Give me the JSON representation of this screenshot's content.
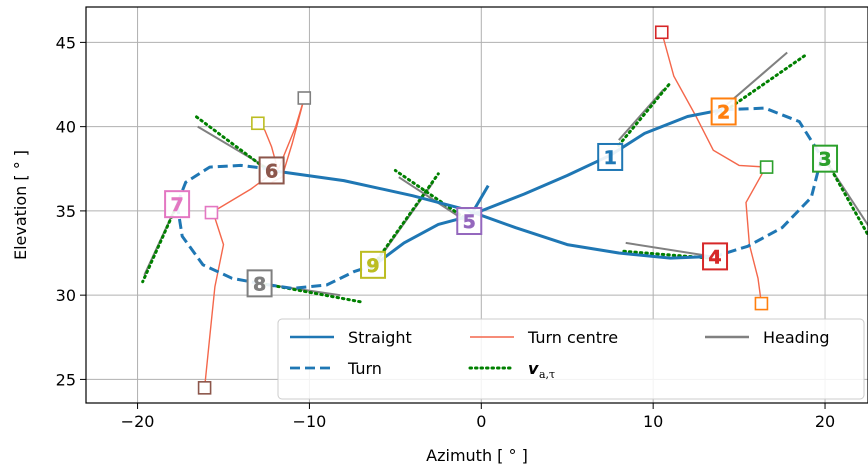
{
  "chart_data": {
    "type": "line",
    "xlabel": "Azimuth [ ° ]",
    "ylabel": "Elevation [ ° ]",
    "xlim": [
      -23,
      22.5
    ],
    "ylim": [
      23.6,
      47.1
    ],
    "xticks": [
      -20,
      -10,
      0,
      10,
      20
    ],
    "yticks": [
      25,
      30,
      35,
      40,
      45
    ],
    "grid": true,
    "legend_position": "bottom-right",
    "legend": [
      {
        "label": "Straight",
        "style": "solid",
        "color": "#1f77b4"
      },
      {
        "label": "Turn",
        "style": "dashed",
        "color": "#1f77b4"
      },
      {
        "label": "Turn centre",
        "style": "solid-thin",
        "color": "#f4674b"
      },
      {
        "label": "v_a,τ",
        "style": "dotted",
        "color": "#008000"
      },
      {
        "label": "Heading",
        "style": "solid",
        "color": "#808080"
      }
    ],
    "straight_segments": [
      [
        [
          -12.2,
          37.4
        ],
        [
          -8,
          36.8
        ],
        [
          -4,
          35.9
        ],
        [
          -1,
          35.1
        ],
        [
          2,
          34.0
        ],
        [
          5,
          33.0
        ],
        [
          8,
          32.5
        ],
        [
          11,
          32.2
        ],
        [
          13.5,
          32.3
        ]
      ],
      [
        [
          -6.2,
          31.8
        ],
        [
          -4.5,
          33.1
        ],
        [
          -2.5,
          34.2
        ],
        [
          -1,
          34.6
        ],
        [
          0.5,
          35.2
        ],
        [
          2.5,
          36.0
        ],
        [
          5,
          37.1
        ],
        [
          7.5,
          38.3
        ],
        [
          9.5,
          39.6
        ],
        [
          12,
          40.6
        ],
        [
          14,
          41.0
        ]
      ],
      [
        [
          -0.8,
          34.4
        ],
        [
          0.4,
          36.5
        ]
      ]
    ],
    "turn_segments": [
      [
        [
          -17.7,
          35.4
        ],
        [
          -17.2,
          36.7
        ],
        [
          -15.8,
          37.6
        ],
        [
          -14,
          37.7
        ],
        [
          -12.4,
          37.5
        ]
      ],
      [
        [
          -17.7,
          35.4
        ],
        [
          -17.4,
          33.5
        ],
        [
          -16.2,
          31.8
        ],
        [
          -14.5,
          31.0
        ],
        [
          -12.9,
          30.7
        ],
        [
          -11,
          30.4
        ],
        [
          -9,
          30.6
        ],
        [
          -7.4,
          31.4
        ],
        [
          -6.2,
          31.8
        ]
      ],
      [
        [
          14.1,
          41.0
        ],
        [
          16.5,
          41.1
        ],
        [
          18.5,
          40.3
        ],
        [
          19.8,
          38.2
        ],
        [
          19.2,
          35.8
        ],
        [
          17.5,
          34.0
        ],
        [
          15.5,
          32.9
        ],
        [
          13.6,
          32.3
        ]
      ]
    ],
    "turn_centre_paths": [
      [
        [
          10.5,
          45.6
        ],
        [
          11.2,
          43.0
        ],
        [
          12.5,
          40.6
        ],
        [
          13.5,
          38.6
        ],
        [
          15,
          37.7
        ],
        [
          16.6,
          37.6
        ]
      ],
      [
        [
          16.5,
          37.5
        ],
        [
          15.4,
          35.5
        ],
        [
          15.6,
          33.0
        ],
        [
          16.1,
          31.0
        ],
        [
          16.3,
          29.5
        ]
      ],
      [
        [
          -10.3,
          41.7
        ],
        [
          -10.8,
          40.0
        ],
        [
          -11.8,
          37.5
        ],
        [
          -13.4,
          36.3
        ],
        [
          -15.7,
          34.9
        ]
      ],
      [
        [
          -15.6,
          34.9
        ],
        [
          -15.0,
          33.0
        ],
        [
          -15.5,
          30.5
        ],
        [
          -15.8,
          27.5
        ],
        [
          -16.1,
          24.5
        ]
      ],
      [
        [
          -11.8,
          37.3
        ],
        [
          -12.2,
          38.8
        ],
        [
          -12.6,
          39.8
        ],
        [
          -13.0,
          40.2
        ]
      ],
      [
        [
          -10.3,
          41.7
        ],
        [
          -11.0,
          39.0
        ],
        [
          -11.6,
          37.0
        ],
        [
          -12.2,
          36.7
        ]
      ]
    ],
    "turn_centres": [
      {
        "x": 10.5,
        "y": 45.6,
        "color": "#d62728"
      },
      {
        "x": 16.6,
        "y": 37.6,
        "color": "#2ca02c"
      },
      {
        "x": 16.3,
        "y": 29.5,
        "color": "#ff7f0e"
      },
      {
        "x": -10.3,
        "y": 41.7,
        "color": "#7f7f7f"
      },
      {
        "x": -13.0,
        "y": 40.2,
        "color": "#bcbd22"
      },
      {
        "x": -15.7,
        "y": 34.9,
        "color": "#e377c2"
      },
      {
        "x": -16.1,
        "y": 24.5,
        "color": "#8c564b"
      }
    ],
    "headings": [
      [
        [
          8,
          39.2
        ],
        [
          10.6,
          42.2
        ]
      ],
      [
        [
          13.6,
          40.7
        ],
        [
          17.8,
          44.4
        ]
      ],
      [
        [
          19.9,
          38.2
        ],
        [
          22.6,
          34.0
        ]
      ],
      [
        [
          8.4,
          33.1
        ],
        [
          13.4,
          32.3
        ]
      ],
      [
        [
          -0.9,
          34.4
        ],
        [
          -4.8,
          37.0
        ]
      ],
      [
        [
          -6.2,
          31.8
        ],
        [
          -2.8,
          36.7
        ]
      ],
      [
        [
          -12.2,
          37.4
        ],
        [
          -16.5,
          40.0
        ]
      ],
      [
        [
          -17.7,
          35.4
        ],
        [
          -19.6,
          31.2
        ]
      ],
      [
        [
          -12.9,
          30.7
        ],
        [
          -8.2,
          30.0
        ]
      ]
    ],
    "velocity_vectors": [
      [
        [
          8,
          38.9
        ],
        [
          11,
          42.6
        ]
      ],
      [
        [
          14,
          40.8
        ],
        [
          18.8,
          44.2
        ]
      ],
      [
        [
          19.9,
          38.3
        ],
        [
          22.6,
          33.4
        ]
      ],
      [
        [
          8.3,
          32.6
        ],
        [
          13.3,
          32.2
        ]
      ],
      [
        [
          -1.0,
          34.6
        ],
        [
          -5.0,
          37.4
        ]
      ],
      [
        [
          -6.4,
          31.6
        ],
        [
          -2.5,
          37.2
        ]
      ],
      [
        [
          -12.4,
          37.4
        ],
        [
          -16.6,
          40.6
        ]
      ],
      [
        [
          -17.6,
          35.6
        ],
        [
          -19.7,
          30.8
        ]
      ],
      [
        [
          -12.8,
          30.7
        ],
        [
          -7.0,
          29.6
        ]
      ]
    ],
    "markers": [
      {
        "label": "1",
        "x": 7.5,
        "y": 38.2,
        "color": "#1f77b4"
      },
      {
        "label": "2",
        "x": 14.1,
        "y": 40.9,
        "color": "#ff7f0e"
      },
      {
        "label": "3",
        "x": 20.0,
        "y": 38.1,
        "color": "#2ca02c"
      },
      {
        "label": "4",
        "x": 13.6,
        "y": 32.3,
        "color": "#d62728"
      },
      {
        "label": "5",
        "x": -0.7,
        "y": 34.4,
        "color": "#9467bd"
      },
      {
        "label": "6",
        "x": -12.2,
        "y": 37.4,
        "color": "#8c564b"
      },
      {
        "label": "7",
        "x": -17.7,
        "y": 35.4,
        "color": "#e377c2"
      },
      {
        "label": "8",
        "x": -12.9,
        "y": 30.7,
        "color": "#7f7f7f"
      },
      {
        "label": "9",
        "x": -6.3,
        "y": 31.8,
        "color": "#bcbd22"
      }
    ]
  }
}
